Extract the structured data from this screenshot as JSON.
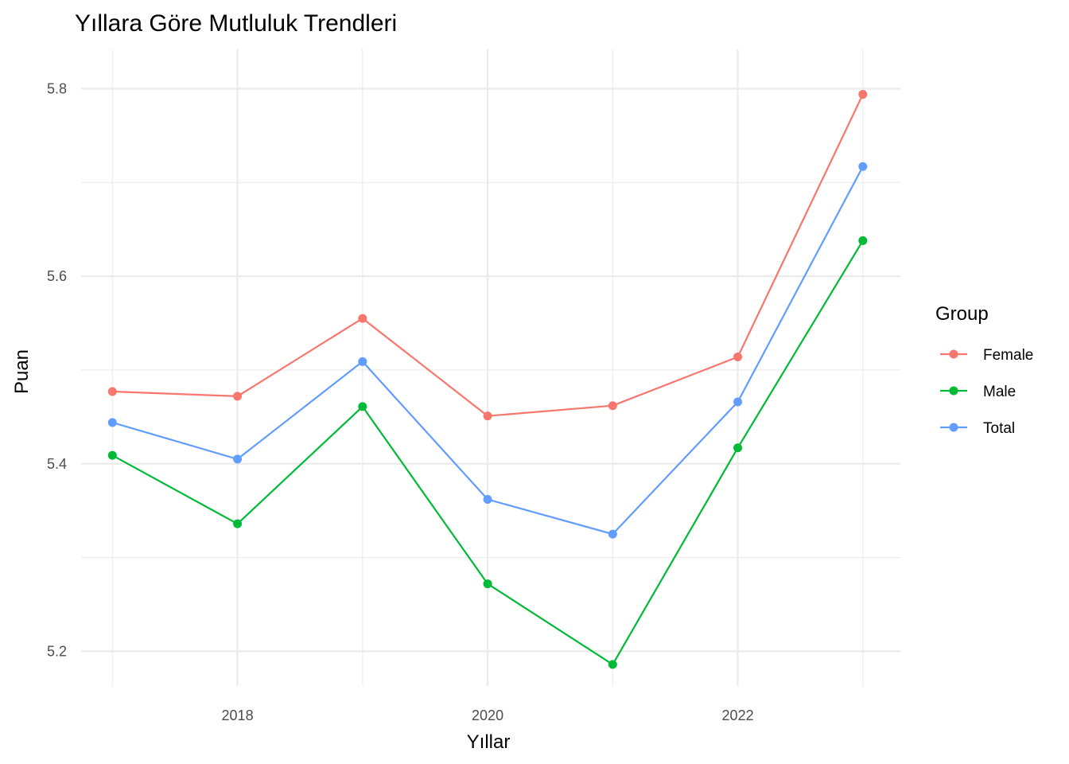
{
  "chart_data": {
    "type": "line",
    "title": "Yıllara Göre Mutluluk Trendleri",
    "xlabel": "Yıllar",
    "ylabel": "Puan",
    "x": [
      2017,
      2018,
      2019,
      2020,
      2021,
      2022,
      2023
    ],
    "xticks": [
      2018,
      2020,
      2022
    ],
    "yticks": [
      5.2,
      5.4,
      5.6,
      5.8
    ],
    "xlim": [
      2016.75,
      2023.3
    ],
    "ylim": [
      5.163,
      5.842
    ],
    "grid": true,
    "legend": {
      "title": "Group",
      "position": "right"
    },
    "series": [
      {
        "name": "Female",
        "color": "#F8766D",
        "values": [
          5.477,
          5.472,
          5.555,
          5.451,
          5.462,
          5.514,
          5.794
        ]
      },
      {
        "name": "Male",
        "color": "#00BA38",
        "values": [
          5.409,
          5.336,
          5.461,
          5.272,
          5.186,
          5.417,
          5.638
        ]
      },
      {
        "name": "Total",
        "color": "#619CFF",
        "values": [
          5.444,
          5.405,
          5.509,
          5.362,
          5.325,
          5.466,
          5.717
        ]
      }
    ]
  }
}
